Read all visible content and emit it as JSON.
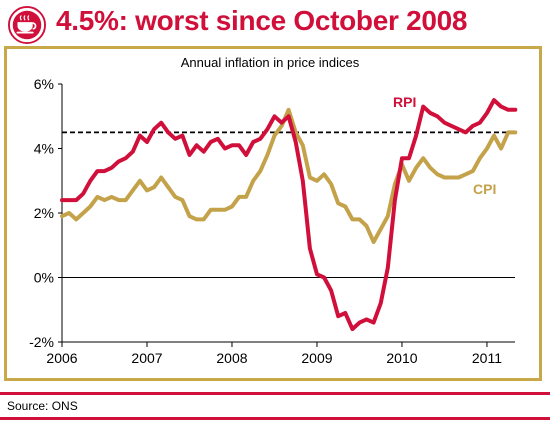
{
  "header": {
    "title": "4.5%: worst since October 2008",
    "logo_icon": "teacup-logo-icon"
  },
  "footer": {
    "source": "Source: ONS"
  },
  "colors": {
    "rpi": "#d0103a",
    "cpi": "#c4a24a",
    "frame": "#c8a94a",
    "target": "#000000"
  },
  "chart_data": {
    "type": "line",
    "title": "Annual inflation in price indices",
    "xlabel": "",
    "ylabel": "",
    "x_ticks": [
      "2006",
      "2007",
      "2008",
      "2009",
      "2010",
      "2011"
    ],
    "y_ticks": [
      "6%",
      "4%",
      "2%",
      "0%",
      "-2%"
    ],
    "ylim": [
      -2,
      6
    ],
    "xlim": [
      2006.0,
      2011.33
    ],
    "grid": false,
    "reference_line": {
      "value": 4.5,
      "style": "dashed"
    },
    "x": [
      2006.0,
      2006.0833,
      2006.1667,
      2006.25,
      2006.3333,
      2006.4167,
      2006.5,
      2006.5833,
      2006.6667,
      2006.75,
      2006.8333,
      2006.9167,
      2007.0,
      2007.0833,
      2007.1667,
      2007.25,
      2007.3333,
      2007.4167,
      2007.5,
      2007.5833,
      2007.6667,
      2007.75,
      2007.8333,
      2007.9167,
      2008.0,
      2008.0833,
      2008.1667,
      2008.25,
      2008.3333,
      2008.4167,
      2008.5,
      2008.5833,
      2008.6667,
      2008.75,
      2008.8333,
      2008.9167,
      2009.0,
      2009.0833,
      2009.1667,
      2009.25,
      2009.3333,
      2009.4167,
      2009.5,
      2009.5833,
      2009.6667,
      2009.75,
      2009.8333,
      2009.9167,
      2010.0,
      2010.0833,
      2010.1667,
      2010.25,
      2010.3333,
      2010.4167,
      2010.5,
      2010.5833,
      2010.6667,
      2010.75,
      2010.8333,
      2010.9167,
      2011.0,
      2011.0833,
      2011.1667,
      2011.25,
      2011.3333
    ],
    "series": [
      {
        "name": "RPI",
        "values": [
          2.4,
          2.4,
          2.4,
          2.6,
          3.0,
          3.3,
          3.3,
          3.4,
          3.6,
          3.7,
          3.9,
          4.4,
          4.2,
          4.6,
          4.8,
          4.5,
          4.3,
          4.4,
          3.8,
          4.1,
          3.9,
          4.2,
          4.3,
          4.0,
          4.1,
          4.1,
          3.8,
          4.2,
          4.3,
          4.6,
          5.0,
          4.8,
          5.0,
          4.2,
          3.0,
          0.9,
          0.1,
          0.0,
          -0.4,
          -1.2,
          -1.1,
          -1.6,
          -1.4,
          -1.3,
          -1.4,
          -0.8,
          0.3,
          2.4,
          3.7,
          3.7,
          4.4,
          5.3,
          5.1,
          5.0,
          4.8,
          4.7,
          4.6,
          4.5,
          4.7,
          4.8,
          5.1,
          5.5,
          5.3,
          5.2,
          5.2
        ]
      },
      {
        "name": "CPI",
        "values": [
          1.9,
          2.0,
          1.8,
          2.0,
          2.2,
          2.5,
          2.4,
          2.5,
          2.4,
          2.4,
          2.7,
          3.0,
          2.7,
          2.8,
          3.1,
          2.8,
          2.5,
          2.4,
          1.9,
          1.8,
          1.8,
          2.1,
          2.1,
          2.1,
          2.2,
          2.5,
          2.5,
          3.0,
          3.3,
          3.8,
          4.4,
          4.7,
          5.2,
          4.5,
          4.1,
          3.1,
          3.0,
          3.2,
          2.9,
          2.3,
          2.2,
          1.8,
          1.8,
          1.6,
          1.1,
          1.5,
          1.9,
          2.9,
          3.5,
          3.0,
          3.4,
          3.7,
          3.4,
          3.2,
          3.1,
          3.1,
          3.1,
          3.2,
          3.3,
          3.7,
          4.0,
          4.4,
          4.0,
          4.5,
          4.5
        ]
      }
    ],
    "series_labels": [
      "RPI",
      "CPI"
    ]
  }
}
